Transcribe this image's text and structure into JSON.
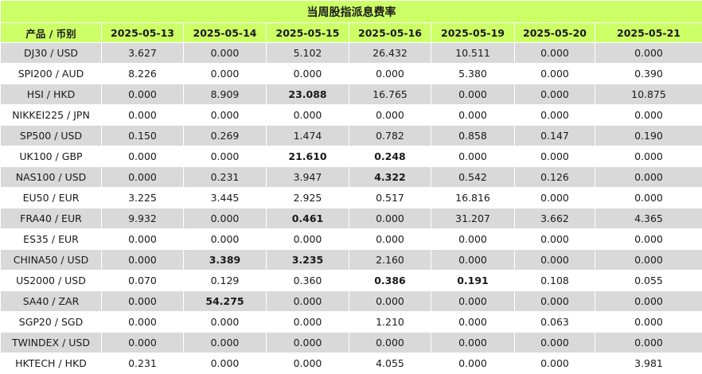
{
  "title": "当周股指派息费率",
  "header": {
    "product_label": "产品 / 币别",
    "dates": [
      "2025-05-13",
      "2025-05-14",
      "2025-05-15",
      "2025-05-16",
      "2025-05-19",
      "2025-05-20",
      "2025-05-21"
    ]
  },
  "rows": [
    {
      "product": "DJ30 / USD",
      "values": [
        "3.627",
        "0.000",
        "5.102",
        "26.432",
        "10.511",
        "0.000",
        "0.000"
      ],
      "bold": []
    },
    {
      "product": "SPI200 / AUD",
      "values": [
        "8.226",
        "0.000",
        "0.000",
        "0.000",
        "5.380",
        "0.000",
        "0.390"
      ],
      "bold": []
    },
    {
      "product": "HSI / HKD",
      "values": [
        "0.000",
        "8.909",
        "23.088",
        "16.765",
        "0.000",
        "0.000",
        "10.875"
      ],
      "bold": [
        2
      ]
    },
    {
      "product": "NIKKEI225 / JPN",
      "values": [
        "0.000",
        "0.000",
        "0.000",
        "0.000",
        "0.000",
        "0.000",
        "0.000"
      ],
      "bold": []
    },
    {
      "product": "SP500 / USD",
      "values": [
        "0.150",
        "0.269",
        "1.474",
        "0.782",
        "0.858",
        "0.147",
        "0.190"
      ],
      "bold": []
    },
    {
      "product": "UK100 / GBP",
      "values": [
        "0.000",
        "0.000",
        "21.610",
        "0.248",
        "0.000",
        "0.000",
        "0.000"
      ],
      "bold": [
        2,
        3
      ]
    },
    {
      "product": "NAS100 / USD",
      "values": [
        "0.000",
        "0.231",
        "3.947",
        "4.322",
        "0.542",
        "0.126",
        "0.000"
      ],
      "bold": [
        3
      ]
    },
    {
      "product": "EU50 / EUR",
      "values": [
        "3.225",
        "3.445",
        "2.925",
        "0.517",
        "16.816",
        "0.000",
        "0.000"
      ],
      "bold": []
    },
    {
      "product": "FRA40 / EUR",
      "values": [
        "9.932",
        "0.000",
        "0.461",
        "0.000",
        "31.207",
        "3.662",
        "4.365"
      ],
      "bold": [
        2
      ]
    },
    {
      "product": "ES35 / EUR",
      "values": [
        "0.000",
        "0.000",
        "0.000",
        "0.000",
        "0.000",
        "0.000",
        "0.000"
      ],
      "bold": []
    },
    {
      "product": "CHINA50 / USD",
      "values": [
        "0.000",
        "3.389",
        "3.235",
        "2.160",
        "0.000",
        "0.000",
        "0.000"
      ],
      "bold": [
        1,
        2
      ]
    },
    {
      "product": "US2000 / USD",
      "values": [
        "0.070",
        "0.129",
        "0.360",
        "0.386",
        "0.191",
        "0.108",
        "0.055"
      ],
      "bold": [
        3,
        4
      ]
    },
    {
      "product": "SA40 / ZAR",
      "values": [
        "0.000",
        "54.275",
        "0.000",
        "0.000",
        "0.000",
        "0.000",
        "0.000"
      ],
      "bold": [
        1
      ]
    },
    {
      "product": "SGP20 / SGD",
      "values": [
        "0.000",
        "0.000",
        "0.000",
        "1.210",
        "0.000",
        "0.063",
        "0.000"
      ],
      "bold": []
    },
    {
      "product": "TWINDEX / USD",
      "values": [
        "0.000",
        "0.000",
        "0.000",
        "0.000",
        "0.000",
        "0.000",
        "0.000"
      ],
      "bold": []
    },
    {
      "product": "HKTECH / HKD",
      "values": [
        "0.231",
        "0.000",
        "0.000",
        "4.055",
        "0.000",
        "0.000",
        "3.981"
      ],
      "bold": []
    }
  ],
  "colors": {
    "header_bg": "#ccff66",
    "row_alt_bg": "#d9d9d9",
    "row_bg": "#ffffff"
  }
}
